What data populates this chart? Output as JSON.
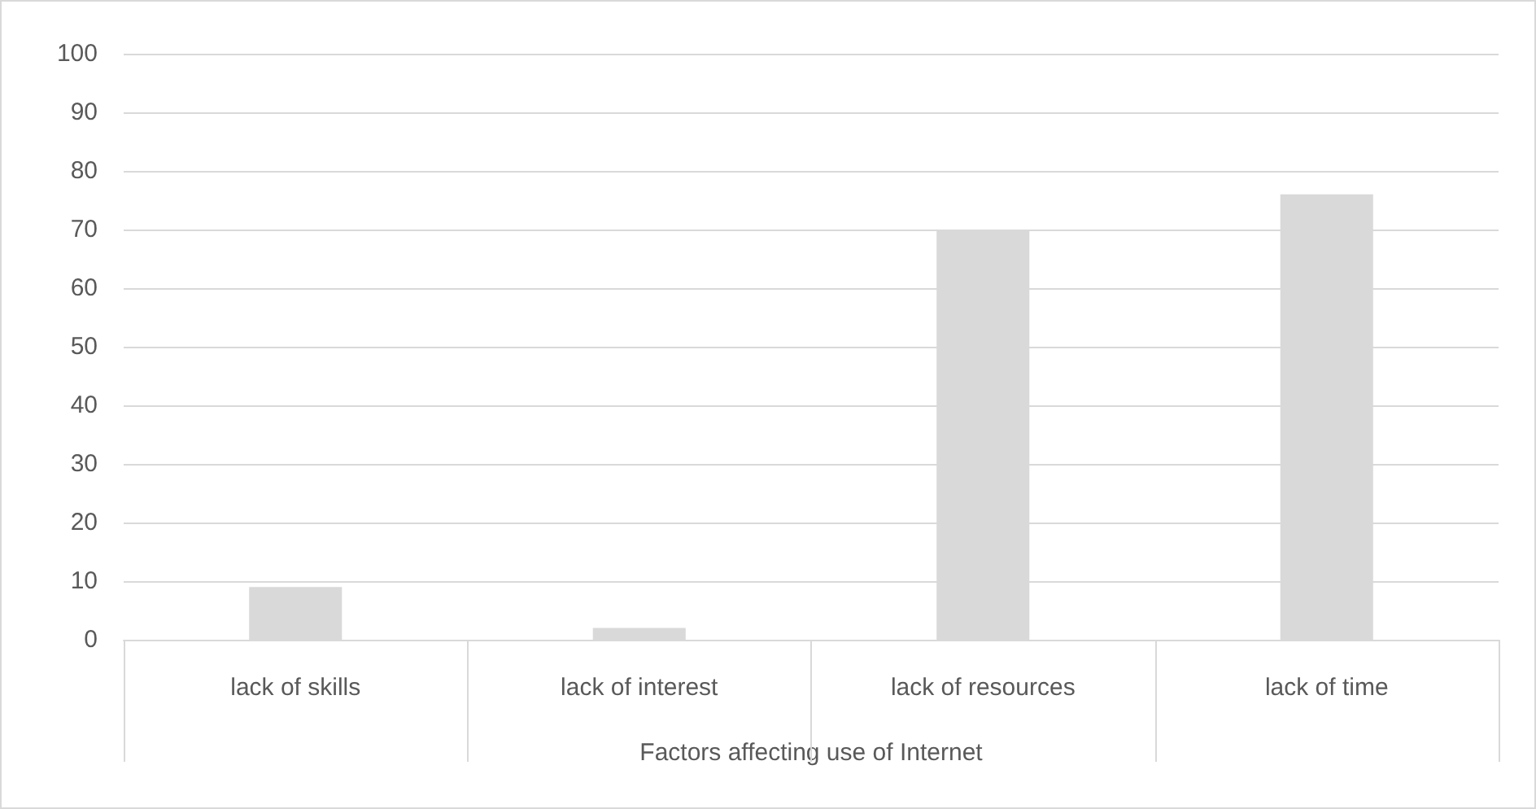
{
  "chart_data": {
    "type": "bar",
    "xlabel": "Factors affecting use of Internet",
    "categories": [
      "lack of skills",
      "lack of interest",
      "lack of resources",
      "lack of time"
    ],
    "values": [
      9,
      2,
      70,
      76
    ],
    "color": "#d9d9d9",
    "ylim": [
      0,
      100
    ],
    "yticks": [
      0,
      10,
      20,
      30,
      40,
      50,
      60,
      70,
      80,
      90,
      100
    ],
    "grid": "y"
  }
}
